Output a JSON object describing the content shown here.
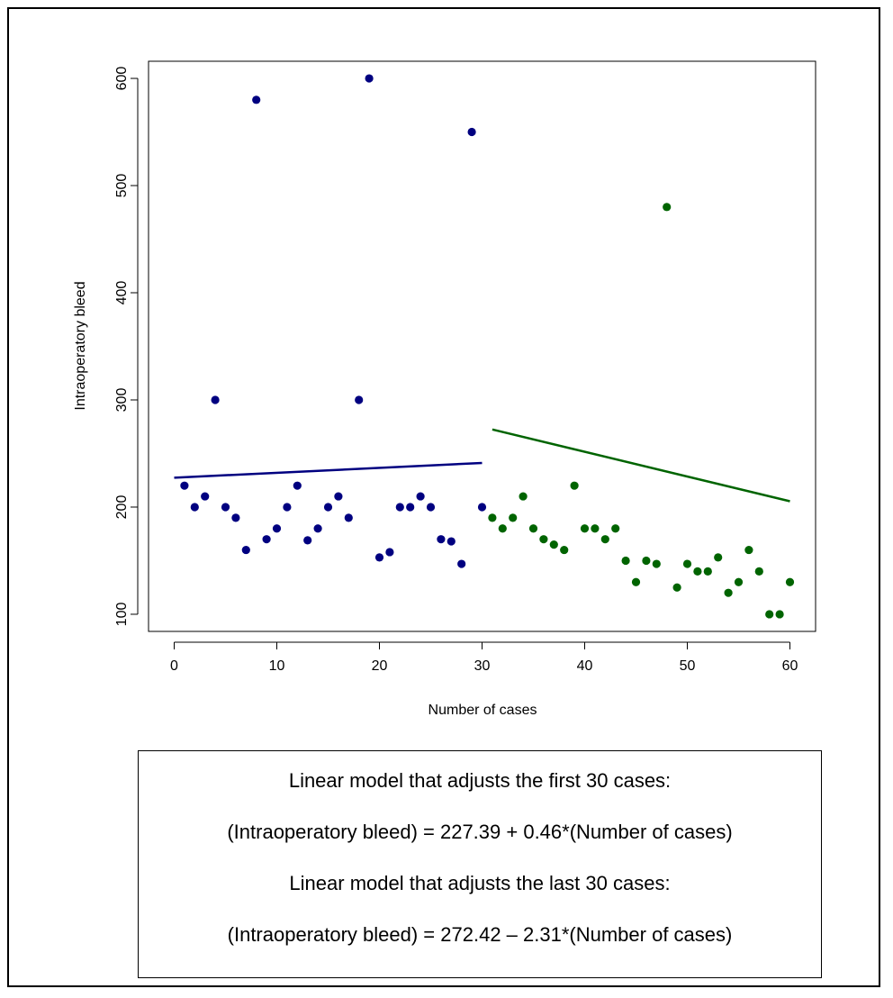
{
  "chart_data": {
    "type": "scatter",
    "xlabel": "Number of cases",
    "ylabel": "Intraoperatory bleed",
    "xlim": [
      -2.5,
      62.5
    ],
    "ylim": [
      84,
      616
    ],
    "xticks": [
      0,
      10,
      20,
      30,
      40,
      50,
      60
    ],
    "yticks": [
      100,
      200,
      300,
      400,
      500,
      600
    ],
    "grid": false,
    "series": [
      {
        "color": "#000080",
        "x": [
          1,
          2,
          3,
          4,
          5,
          6,
          7,
          8,
          9,
          10,
          11,
          12,
          13,
          14,
          15,
          16,
          17,
          18,
          19,
          20,
          21,
          22,
          23,
          24,
          25,
          26,
          27,
          28,
          29,
          30
        ],
        "y": [
          220,
          200,
          210,
          300,
          200,
          190,
          160,
          580,
          170,
          180,
          200,
          220,
          169,
          180,
          200,
          210,
          190,
          300,
          600,
          153,
          158,
          200,
          200,
          210,
          200,
          170,
          168,
          147,
          550,
          200
        ]
      },
      {
        "color": "#006400",
        "x": [
          31,
          32,
          33,
          34,
          35,
          36,
          37,
          38,
          39,
          40,
          41,
          42,
          43,
          44,
          45,
          46,
          47,
          48,
          49,
          50,
          51,
          52,
          53,
          54,
          55,
          56,
          57,
          58,
          59,
          60
        ],
        "y": [
          190,
          180,
          190,
          210,
          180,
          170,
          165,
          160,
          220,
          180,
          180,
          170,
          180,
          150,
          130,
          150,
          147,
          480,
          125,
          147,
          140,
          140,
          153,
          120,
          130,
          160,
          140,
          100,
          100,
          130
        ]
      }
    ],
    "fit_lines": [
      {
        "color": "#000080",
        "x": [
          0,
          30
        ],
        "intercept": 227.39,
        "slope": 0.46
      },
      {
        "color": "#006400",
        "x": [
          31,
          60
        ],
        "intercept": 272.42,
        "slope": -2.31,
        "x_offset": 31
      }
    ]
  },
  "model_box": {
    "line1": "Linear model that adjusts the first 30 cases:",
    "line2": "(Intraoperatory bleed) = 227.39 + 0.46*(Number of cases)",
    "line3": "Linear model that adjusts the last 30 cases:",
    "line4": "(Intraoperatory bleed) = 272.42 – 2.31*(Number of cases)"
  }
}
